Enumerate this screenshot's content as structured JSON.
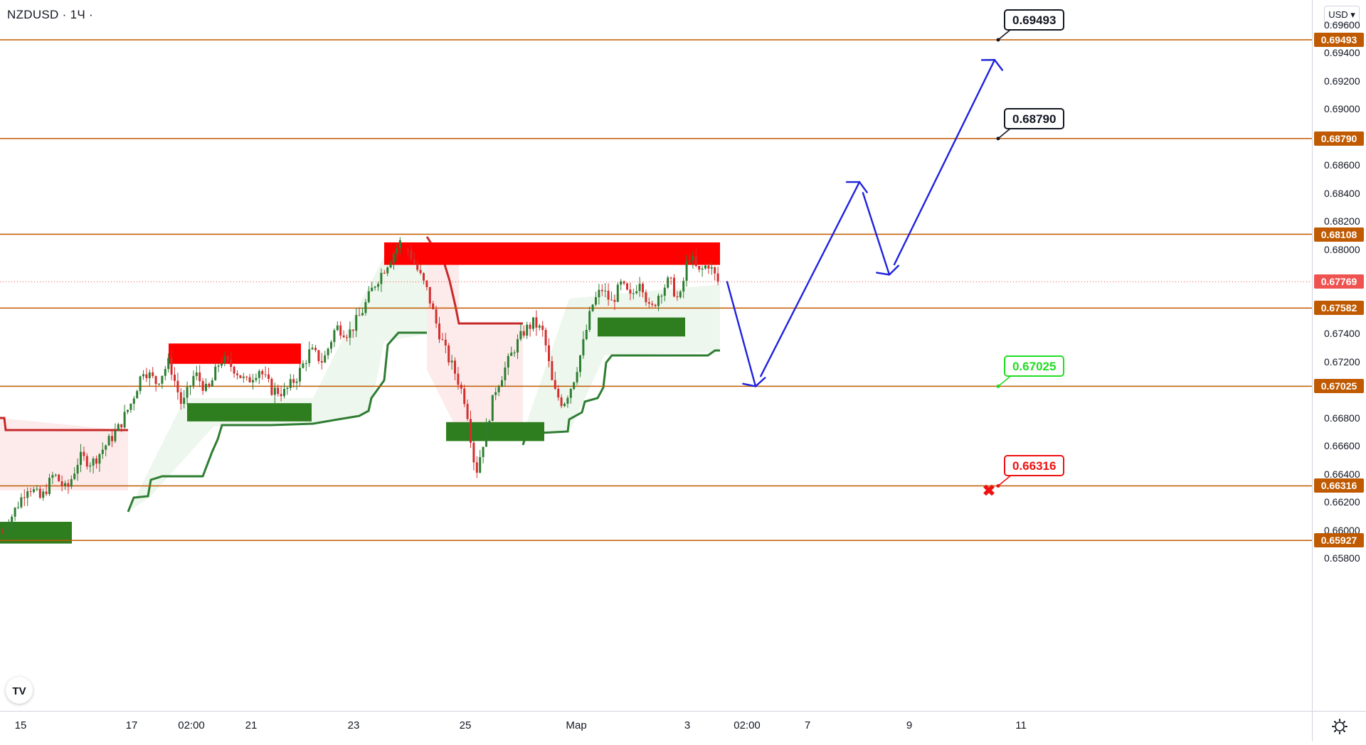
{
  "symbol": {
    "title": "NZDUSD · 1Ч ·"
  },
  "currency_select": {
    "label": "USD",
    "icon": "chevron-down-icon"
  },
  "colors": {
    "level_line": "#c05a00",
    "bull": "#2e7d32",
    "bear": "#d32f2f",
    "resistance_zone": "#ff0000",
    "support_zone": "#2e7d1f",
    "projection_arrow": "#1e22dd",
    "target_green": "#22dd22",
    "stop_red": "#ee1111",
    "current_price": "#ef5350"
  },
  "price_axis": {
    "ticks": [
      "0.69600",
      "0.69400",
      "0.69200",
      "0.69000",
      "0.68600",
      "0.68400",
      "0.68200",
      "0.68000",
      "0.67400",
      "0.67200",
      "0.66800",
      "0.66600",
      "0.66400",
      "0.66200",
      "0.66000",
      "0.65800"
    ],
    "level_badges": [
      "0.69493",
      "0.68790",
      "0.68108",
      "0.67582",
      "0.67025",
      "0.66316",
      "0.65927"
    ],
    "current_price": "0.67769"
  },
  "time_axis": {
    "labels": [
      "15",
      "17",
      "02:00",
      "21",
      "23",
      "25",
      "Мар",
      "3",
      "02:00",
      "7",
      "9",
      "11"
    ]
  },
  "callouts": [
    {
      "label": "0.69493",
      "style": "black"
    },
    {
      "label": "0.68790",
      "style": "black"
    },
    {
      "label": "0.67025",
      "style": "green"
    },
    {
      "label": "0.66316",
      "style": "red"
    }
  ],
  "chart_data": {
    "type": "candlestick",
    "symbol": "NZDUSD",
    "timeframe": "1Ч",
    "y_range": [
      0.6577,
      0.6967
    ],
    "key_levels": [
      0.69493,
      0.6879,
      0.68108,
      0.67582,
      0.67025,
      0.66316,
      0.65927
    ],
    "current_price": 0.67769,
    "price_path": [
      [
        0.6598,
        0.6615,
        0.6632,
        0.6622,
        0.664,
        0.6628,
        0.6652,
        0.6648,
        0.666,
        0.6672,
        0.669,
        0.6715,
        0.6705,
        0.672,
        0.6688,
        0.6712,
        0.6698,
        0.6722,
        0.6716,
        0.6705,
        0.6715,
        0.67,
        0.6698,
        0.671,
        0.6728,
        0.672,
        0.6745,
        0.674,
        0.6755,
        0.6775,
        0.679,
        0.6805
      ],
      [
        0.68,
        0.6785,
        0.677,
        0.6745,
        0.6725,
        0.671,
        0.669,
        0.664,
        0.667,
        0.67,
        0.6715,
        0.673,
        0.6742,
        0.6748,
        0.674,
        0.67,
        0.669,
        0.6705,
        0.673,
        0.676,
        0.6772,
        0.6762,
        0.6775,
        0.6765,
        0.678,
        0.6755,
        0.677,
        0.6778,
        0.6762,
        0.6797,
        0.6783,
        0.679,
        0.6777
      ]
    ],
    "forecast_path": [
      0.67769,
      0.67025,
      0.6848,
      0.6782,
      0.6935
    ],
    "resistance_zones": [
      [
        0.67185,
        0.6733
      ],
      [
        0.6789,
        0.6805
      ]
    ],
    "support_zones": [
      [
        0.66775,
        0.66905
      ],
      [
        0.66635,
        0.6677
      ],
      [
        0.6738,
        0.67515
      ],
      [
        0.65905,
        0.6606
      ]
    ],
    "supertrend": {
      "up_color": "#2e7d32",
      "down_color": "#c62828"
    }
  }
}
